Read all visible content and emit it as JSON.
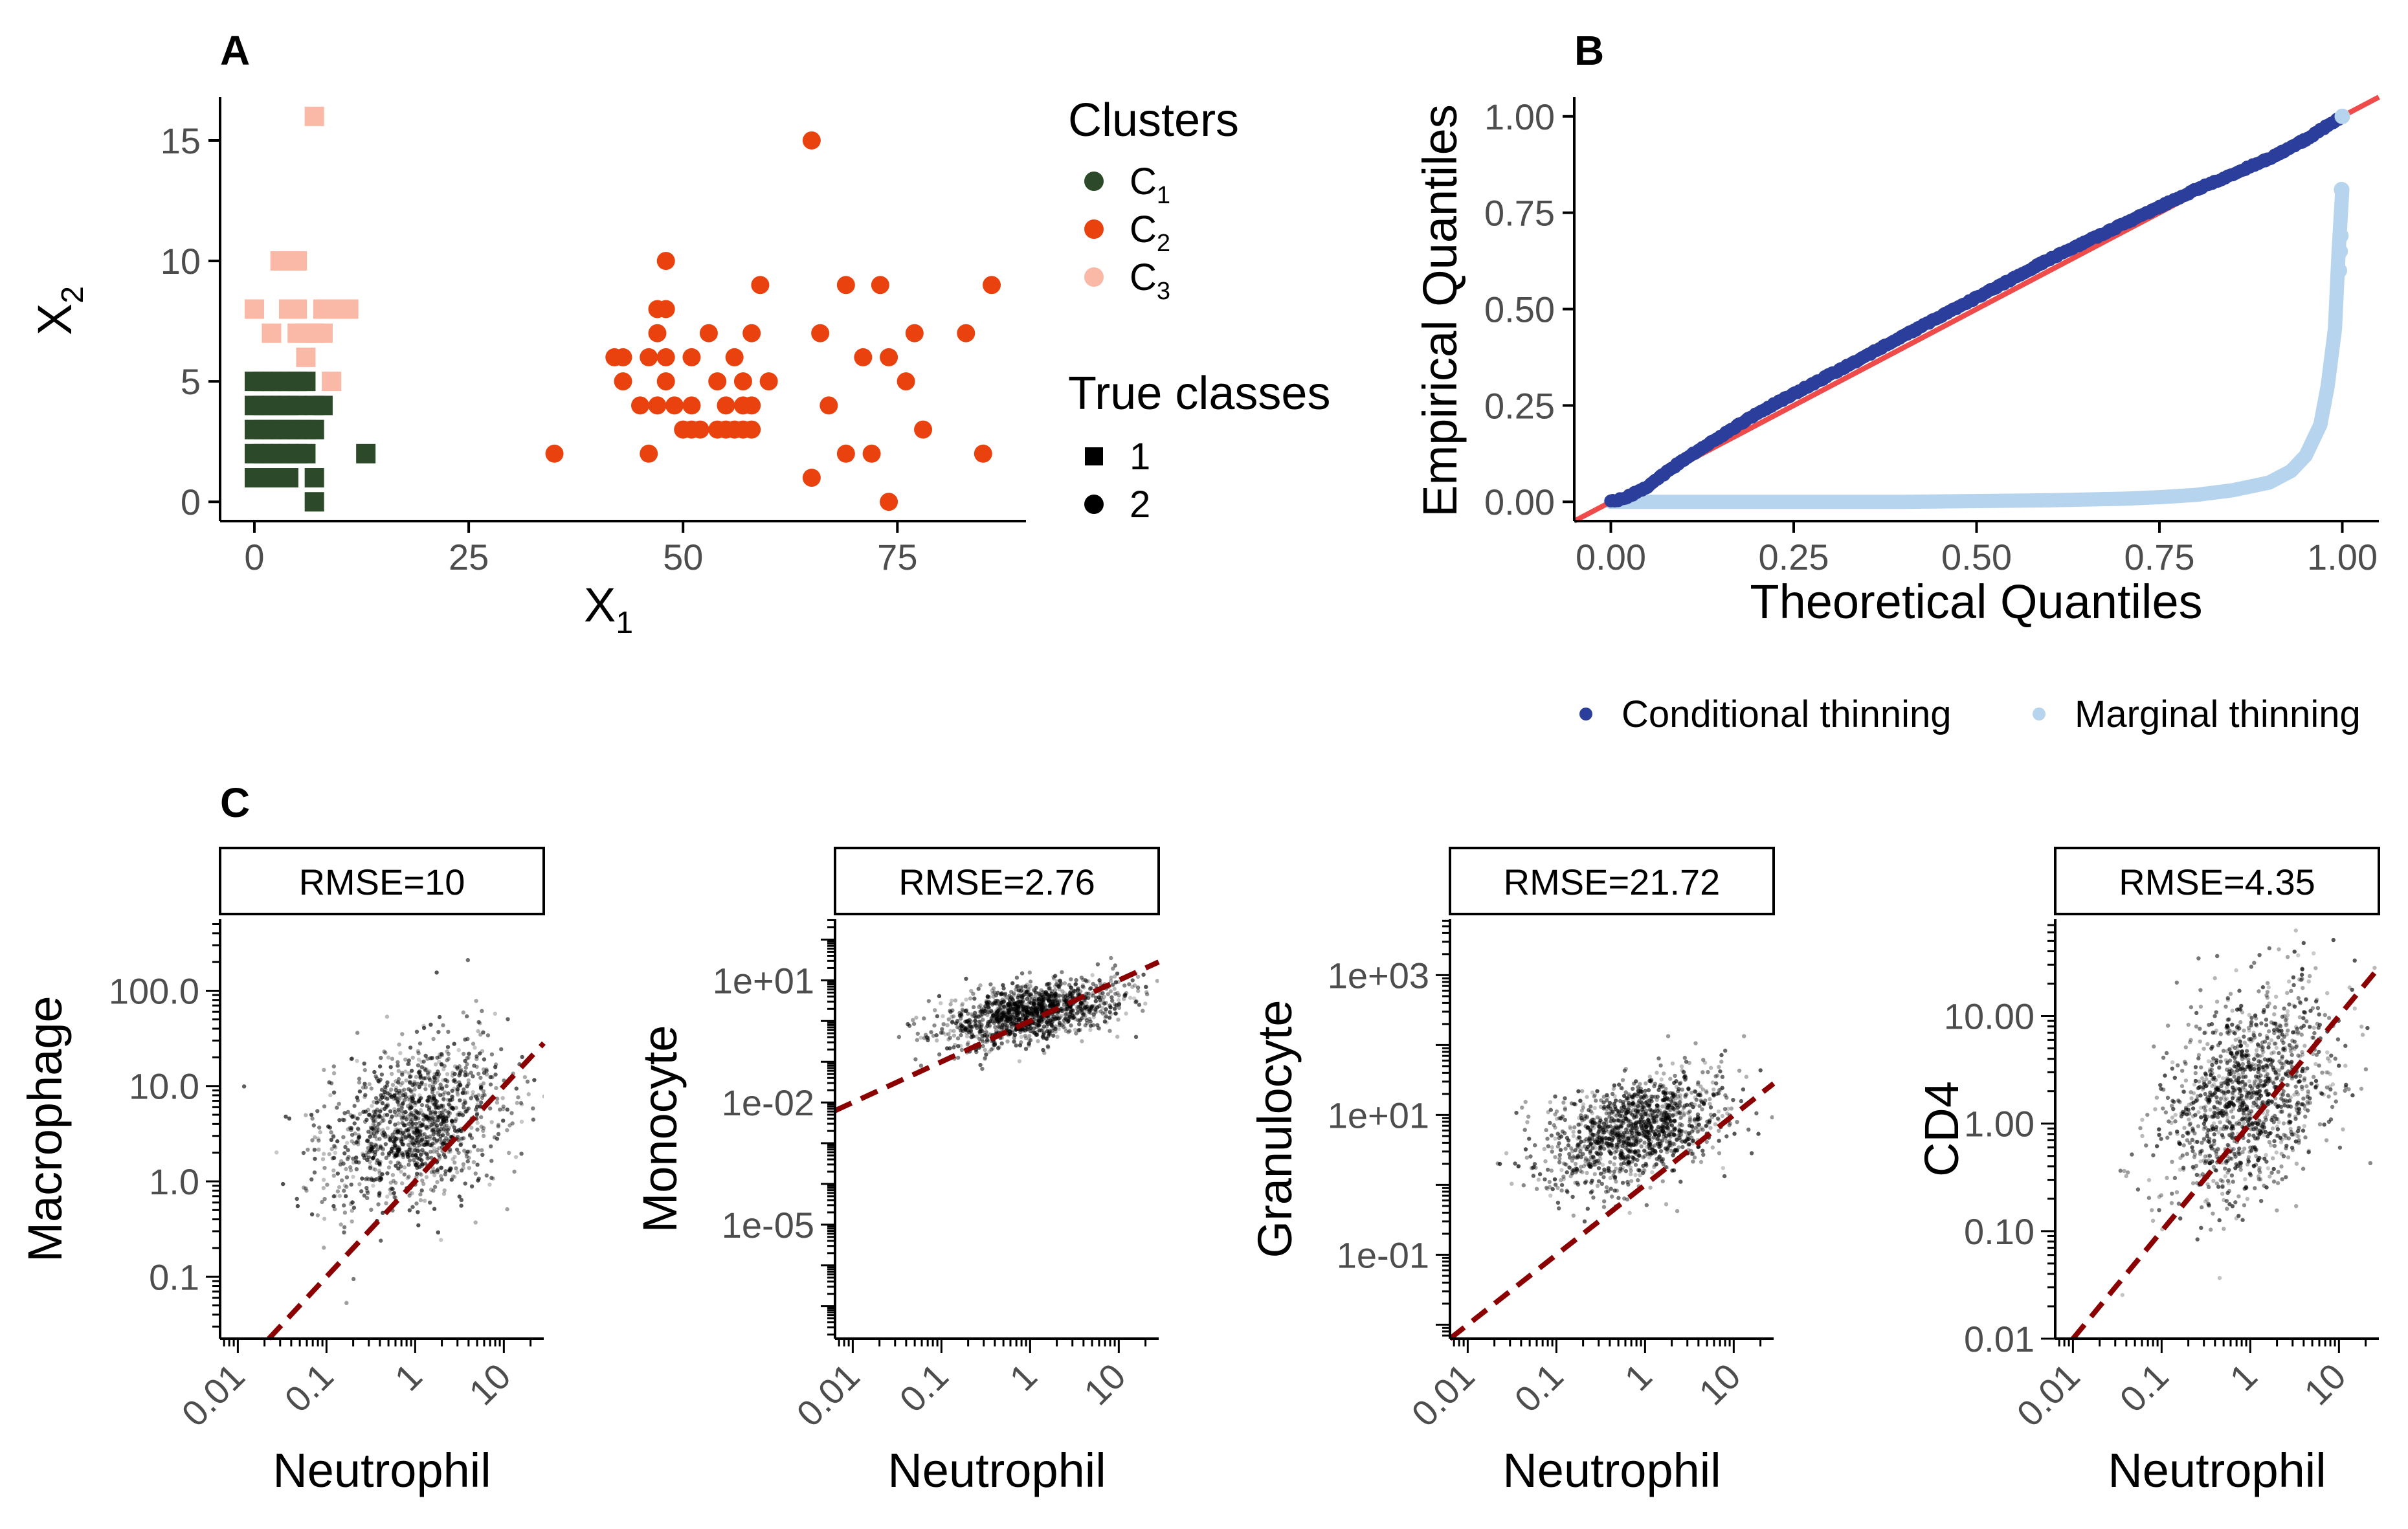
{
  "chart_data": [
    {
      "panel": "A",
      "type": "scatter",
      "xlabel": "X",
      "xlabel_sub": "1",
      "ylabel": "X",
      "ylabel_sub": "2",
      "xlim": [
        -4,
        90
      ],
      "ylim": [
        -0.8,
        16.8
      ],
      "xticks": [
        0,
        25,
        50,
        75
      ],
      "yticks": [
        0,
        5,
        10,
        15
      ],
      "legend_clusters": {
        "title": "Clusters",
        "items": [
          {
            "label": "C",
            "sub": "1",
            "color": "#2c4a2a"
          },
          {
            "label": "C",
            "sub": "2",
            "color": "#e9420e"
          },
          {
            "label": "C",
            "sub": "3",
            "color": "#f9b9a6"
          }
        ]
      },
      "legend_classes": {
        "title": "True classes",
        "items": [
          {
            "label": "1",
            "shape": "square"
          },
          {
            "label": "2",
            "shape": "circle"
          }
        ]
      },
      "series": [
        {
          "name": "C1",
          "shape": "square",
          "color": "#2c4a2a",
          "points": [
            [
              0,
              5
            ],
            [
              1,
              5
            ],
            [
              2,
              5
            ],
            [
              3,
              5
            ],
            [
              4,
              5
            ],
            [
              5,
              5
            ],
            [
              6,
              5
            ],
            [
              0,
              4
            ],
            [
              1,
              4
            ],
            [
              2,
              4
            ],
            [
              3,
              4
            ],
            [
              4,
              4
            ],
            [
              5,
              4
            ],
            [
              7,
              4
            ],
            [
              8,
              4
            ],
            [
              0,
              3
            ],
            [
              1,
              3
            ],
            [
              2,
              3
            ],
            [
              3,
              3
            ],
            [
              4,
              3
            ],
            [
              5,
              3
            ],
            [
              6,
              3
            ],
            [
              7,
              3
            ],
            [
              0,
              2
            ],
            [
              1,
              2
            ],
            [
              2,
              2
            ],
            [
              3,
              2
            ],
            [
              4,
              2
            ],
            [
              5,
              2
            ],
            [
              6,
              2
            ],
            [
              13,
              2
            ],
            [
              0,
              1
            ],
            [
              1,
              1
            ],
            [
              2,
              1
            ],
            [
              3,
              1
            ],
            [
              4,
              1
            ],
            [
              7,
              1
            ],
            [
              7,
              0
            ]
          ]
        },
        {
          "name": "C2",
          "shape": "circle",
          "color": "#e9420e",
          "points": [
            [
              35,
              2
            ],
            [
              42,
              6
            ],
            [
              43,
              6
            ],
            [
              43,
              5
            ],
            [
              45,
              4
            ],
            [
              46,
              6
            ],
            [
              46,
              2
            ],
            [
              47,
              8
            ],
            [
              47,
              7
            ],
            [
              47,
              4
            ],
            [
              48,
              10
            ],
            [
              48,
              8
            ],
            [
              48,
              6
            ],
            [
              48,
              5
            ],
            [
              49,
              4
            ],
            [
              50,
              3
            ],
            [
              51,
              6
            ],
            [
              51,
              4
            ],
            [
              51,
              3
            ],
            [
              52,
              3
            ],
            [
              53,
              7
            ],
            [
              54,
              5
            ],
            [
              54,
              3
            ],
            [
              55,
              4
            ],
            [
              55,
              3
            ],
            [
              56,
              6
            ],
            [
              56,
              3
            ],
            [
              57,
              5
            ],
            [
              57,
              4
            ],
            [
              57,
              3
            ],
            [
              58,
              7
            ],
            [
              58,
              4
            ],
            [
              58,
              3
            ],
            [
              59,
              9
            ],
            [
              60,
              5
            ],
            [
              65,
              15
            ],
            [
              65,
              1
            ],
            [
              66,
              7
            ],
            [
              67,
              4
            ],
            [
              69,
              2
            ],
            [
              69,
              9
            ],
            [
              71,
              6
            ],
            [
              72,
              2
            ],
            [
              73,
              9
            ],
            [
              74,
              6
            ],
            [
              74,
              0
            ],
            [
              76,
              5
            ],
            [
              77,
              7
            ],
            [
              78,
              3
            ],
            [
              83,
              7
            ],
            [
              85,
              2
            ],
            [
              86,
              9
            ]
          ]
        },
        {
          "name": "C3",
          "shape": "square",
          "color": "#f9b9a6",
          "points": [
            [
              7,
              16
            ],
            [
              3,
              10
            ],
            [
              4,
              10
            ],
            [
              5,
              10
            ],
            [
              0,
              8
            ],
            [
              4,
              8
            ],
            [
              5,
              8
            ],
            [
              8,
              8
            ],
            [
              9,
              8
            ],
            [
              10,
              8
            ],
            [
              11,
              8
            ],
            [
              2,
              7
            ],
            [
              5,
              7
            ],
            [
              6,
              7
            ],
            [
              7,
              7
            ],
            [
              8,
              7
            ],
            [
              6,
              6
            ],
            [
              9,
              5
            ]
          ]
        }
      ]
    },
    {
      "panel": "B",
      "type": "line",
      "xlabel": "Theoretical Quantiles",
      "ylabel": "Empirical Quantiles",
      "xlim": [
        -0.05,
        1.05
      ],
      "ylim": [
        -0.05,
        1.05
      ],
      "xticks": [
        "0.00",
        "0.25",
        "0.50",
        "0.75",
        "1.00"
      ],
      "yticks": [
        "0.00",
        "0.25",
        "0.50",
        "0.75",
        "1.00"
      ],
      "reference_line": {
        "slope": 1,
        "intercept": 0,
        "color": "#ef4b4b"
      },
      "series": [
        {
          "name": "Conditional thinning",
          "color": "#2c3e9c",
          "x": [
            0.0,
            0.02,
            0.05,
            0.1,
            0.15,
            0.2,
            0.3,
            0.4,
            0.5,
            0.6,
            0.7,
            0.8,
            0.9,
            0.95,
            1.0
          ],
          "y": [
            0.0,
            0.01,
            0.04,
            0.11,
            0.17,
            0.23,
            0.33,
            0.43,
            0.53,
            0.63,
            0.72,
            0.81,
            0.89,
            0.94,
            1.0
          ]
        },
        {
          "name": "Marginal thinning",
          "color": "#b6d4ee",
          "x": [
            0.0,
            0.2,
            0.4,
            0.5,
            0.6,
            0.7,
            0.75,
            0.8,
            0.85,
            0.9,
            0.93,
            0.95,
            0.97,
            0.98,
            0.99,
            0.995,
            1.0
          ],
          "y": [
            0.0,
            0.0,
            0.0,
            0.002,
            0.004,
            0.008,
            0.012,
            0.018,
            0.03,
            0.05,
            0.08,
            0.12,
            0.2,
            0.3,
            0.45,
            0.65,
            0.81
          ]
        }
      ],
      "legend": [
        "Conditional thinning",
        "Marginal thinning"
      ]
    },
    {
      "panel": "C",
      "type": "scatter",
      "xlabel": "Neutrophil",
      "xticks": [
        "0.01",
        "0.1",
        "1",
        "10"
      ],
      "subplots": [
        {
          "strip": "RMSE=10",
          "ylabel": "Macrophage",
          "yticks": [
            "0.1",
            "1.0",
            "10.0",
            "100.0"
          ],
          "ylog": [
            -1.65,
            2.75
          ],
          "reference": "y = x",
          "cloud": {
            "x_center": 0.0,
            "y_center": 0.6,
            "x_sd": 0.5,
            "y_sd": 0.42,
            "corr": 0.3
          }
        },
        {
          "strip": "RMSE=2.76",
          "ylabel": "Monocyte",
          "yticks": [
            "1e-05",
            "1e-02",
            "1e+01"
          ],
          "ylog": [
            -7.8,
            2.5
          ],
          "reference": "y = x",
          "cloud": {
            "x_center": 0.0,
            "y_center": 0.2,
            "x_sd": 0.5,
            "y_sd": 0.4,
            "corr": 0.5
          }
        },
        {
          "strip": "RMSE=21.72",
          "ylabel": "Granulocyte",
          "yticks": [
            "1e-01",
            "1e+01",
            "1e+03"
          ],
          "ylog": [
            -2.2,
            3.8
          ],
          "reference": "y = x",
          "cloud": {
            "x_center": -0.1,
            "y_center": 0.8,
            "x_sd": 0.5,
            "y_sd": 0.4,
            "corr": 0.4
          }
        },
        {
          "strip": "RMSE=4.35",
          "ylabel": "CD4",
          "yticks": [
            "0.01",
            "0.10",
            "1.00",
            "10.00"
          ],
          "ylog": [
            -2.0,
            1.9
          ],
          "reference": "y = x",
          "cloud": {
            "x_center": 0.0,
            "y_center": 0.3,
            "x_sd": 0.5,
            "y_sd": 0.5,
            "corr": 0.45
          }
        }
      ]
    }
  ],
  "labels": {
    "a": "A",
    "b": "B",
    "c": "C"
  }
}
